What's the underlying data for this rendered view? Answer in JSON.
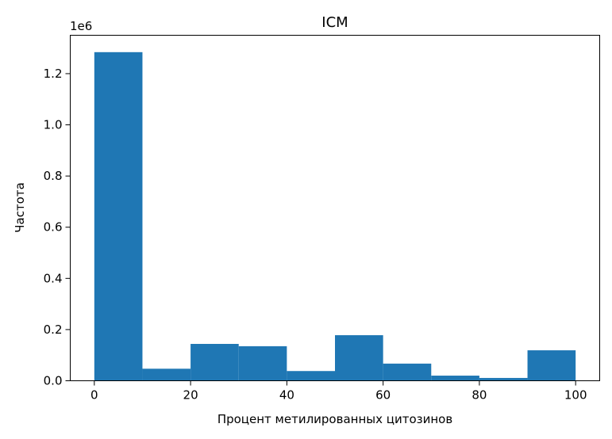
{
  "chart_data": {
    "type": "bar",
    "title": "ICM",
    "xlabel": "Процент метилированных цитозинов",
    "ylabel": "Частота",
    "y_offset_label": "1e6",
    "bin_edges": [
      0,
      10,
      20,
      30,
      40,
      50,
      60,
      70,
      80,
      90,
      100
    ],
    "values": [
      1284000,
      47000,
      144000,
      135000,
      38000,
      178000,
      67000,
      20000,
      11000,
      119000
    ],
    "xlim": [
      -5,
      105
    ],
    "ylim": [
      0,
      1350000
    ],
    "x_ticks": [
      0,
      20,
      40,
      60,
      80,
      100
    ],
    "x_tick_labels": [
      "0",
      "20",
      "40",
      "60",
      "80",
      "100"
    ],
    "y_ticks": [
      0,
      200000,
      400000,
      600000,
      800000,
      1000000,
      1200000
    ],
    "y_tick_labels": [
      "0.0",
      "0.2",
      "0.4",
      "0.6",
      "0.8",
      "1.0",
      "1.2"
    ],
    "bar_color": "#1f77b4",
    "grid": false,
    "legend": "none"
  }
}
